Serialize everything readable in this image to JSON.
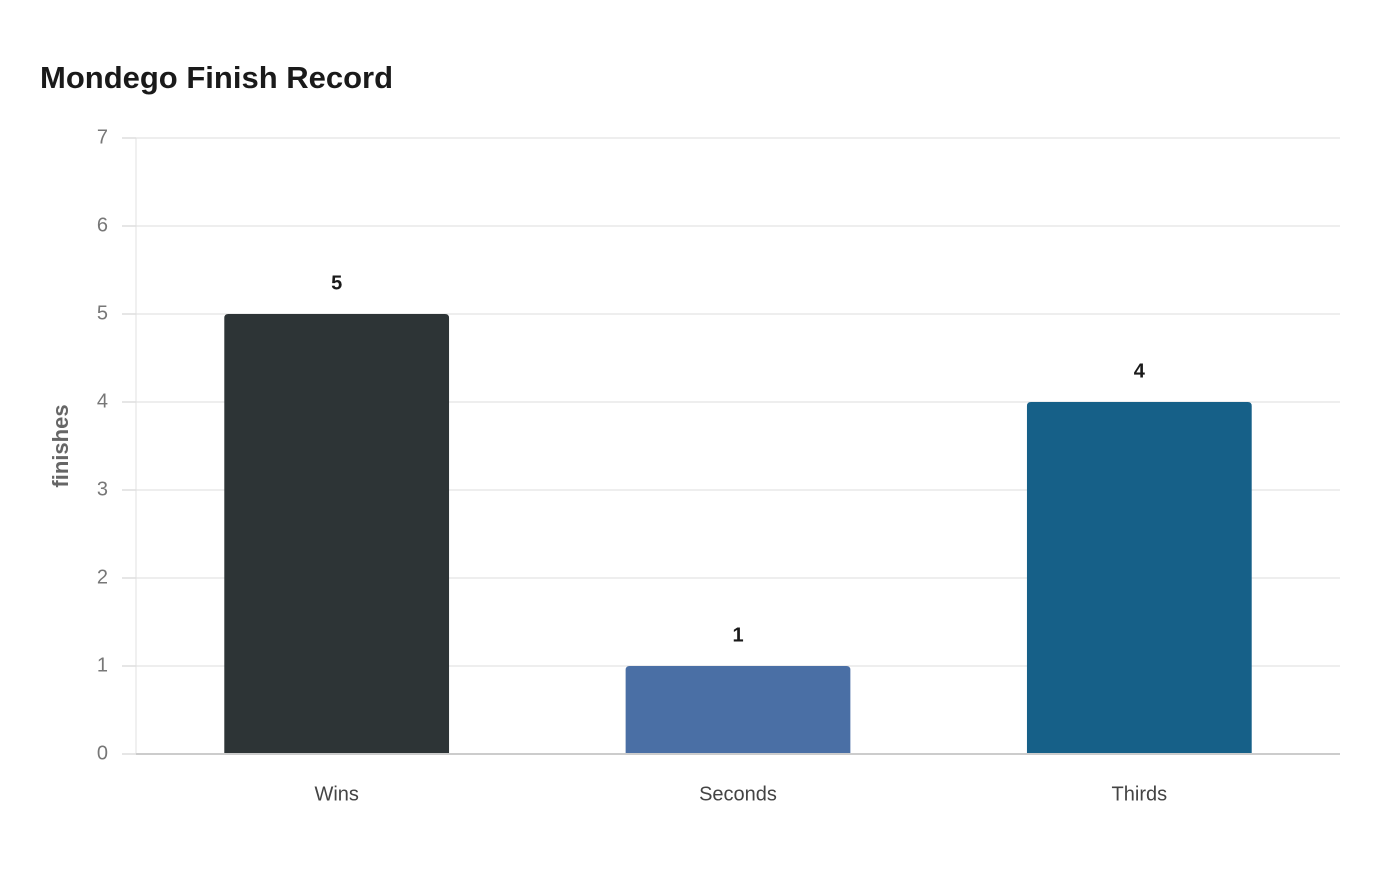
{
  "chart_data": {
    "type": "bar",
    "title": "Mondego Finish Record",
    "y_label": "finishes",
    "categories": [
      "Wins",
      "Seconds",
      "Thirds"
    ],
    "values": [
      5,
      1,
      4
    ],
    "colors": [
      "#2d3436",
      "#4a6fa5",
      "#166088"
    ],
    "ylim": [
      0,
      7
    ],
    "yticks": [
      0,
      1,
      2,
      3,
      4,
      5,
      6,
      7
    ],
    "grid": true
  }
}
